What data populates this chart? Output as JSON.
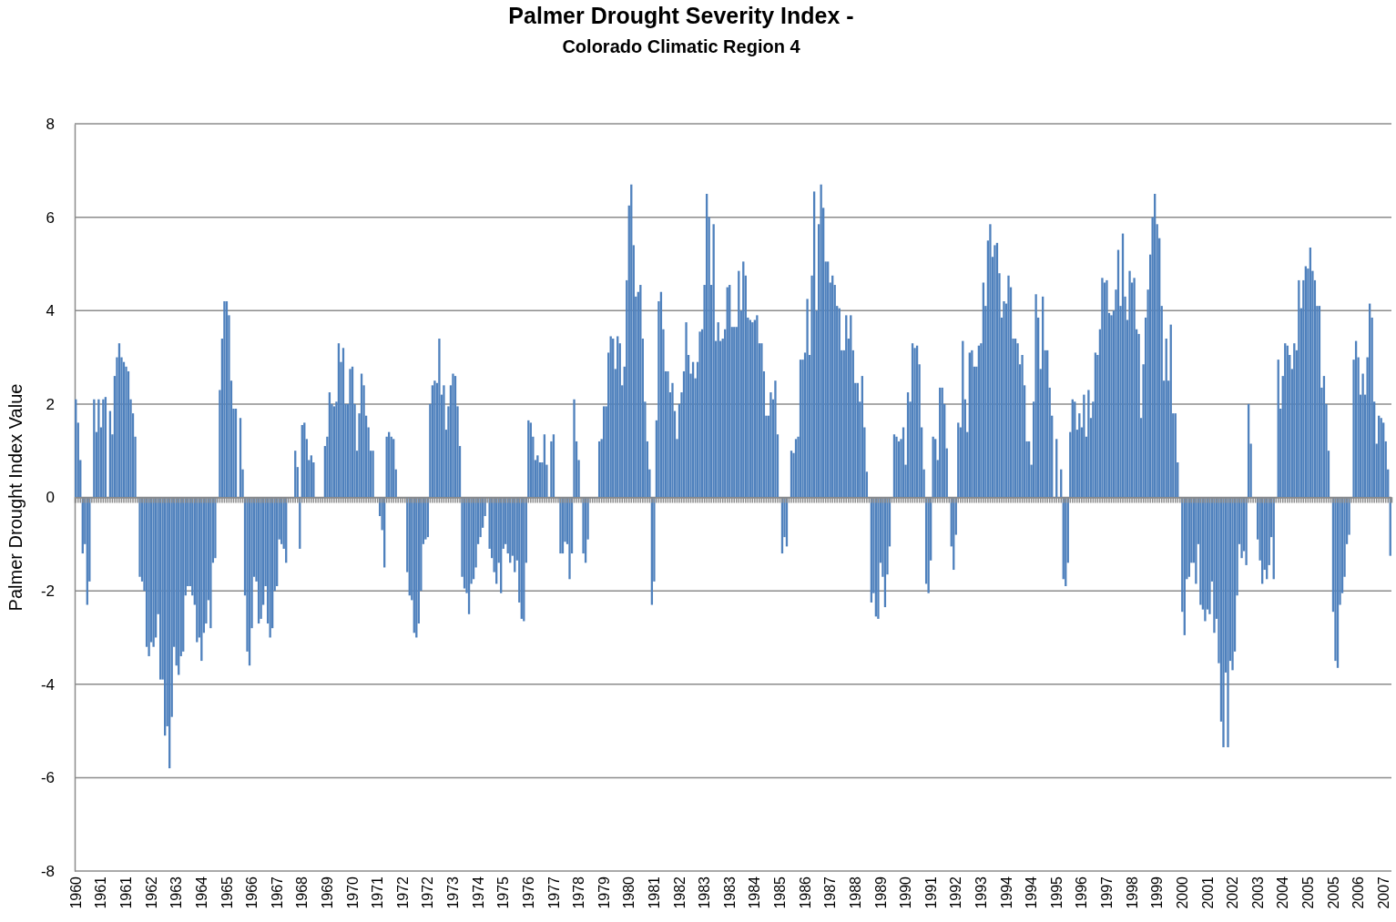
{
  "chart_data": {
    "type": "bar",
    "title": "Palmer Drought Severity Index -",
    "subtitle": "Colorado Climatic Region 4",
    "ylabel": "Palmer Drought Index Value",
    "categories": [
      "1960",
      null,
      null,
      null,
      null,
      null,
      null,
      null,
      null,
      null,
      null,
      "1961",
      null,
      null,
      null,
      null,
      null,
      null,
      null,
      null,
      null,
      null,
      "1961",
      null,
      null,
      null,
      null,
      null,
      null,
      null,
      null,
      null,
      null,
      "1962",
      null,
      null,
      null,
      null,
      null,
      null,
      null,
      null,
      null,
      null,
      "1963",
      null,
      null,
      null,
      null,
      null,
      null,
      null,
      null,
      null,
      null,
      "1964",
      null,
      null,
      null,
      null,
      null,
      null,
      null,
      null,
      null,
      null,
      "1965",
      null,
      null,
      null,
      null,
      null,
      null,
      null,
      null,
      null,
      null,
      "1966",
      null,
      null,
      null,
      null,
      null,
      null,
      null,
      null,
      null,
      null,
      "1967",
      null,
      null,
      null,
      null,
      null,
      null,
      null,
      null,
      null,
      null,
      "1968",
      null,
      null,
      null,
      null,
      null,
      null,
      null,
      null,
      null,
      null,
      "1969",
      null,
      null,
      null,
      null,
      null,
      null,
      null,
      null,
      null,
      null,
      "1970",
      null,
      null,
      null,
      null,
      null,
      null,
      null,
      null,
      null,
      null,
      "1971",
      null,
      null,
      null,
      null,
      null,
      null,
      null,
      null,
      null,
      null,
      "1972",
      null,
      null,
      null,
      null,
      null,
      null,
      null,
      null,
      null,
      null,
      "1972",
      null,
      null,
      null,
      null,
      null,
      null,
      null,
      null,
      null,
      null,
      "1973",
      null,
      null,
      null,
      null,
      null,
      null,
      null,
      null,
      null,
      null,
      "1974",
      null,
      null,
      null,
      null,
      null,
      null,
      null,
      null,
      null,
      null,
      "1975",
      null,
      null,
      null,
      null,
      null,
      null,
      null,
      null,
      null,
      null,
      "1976",
      null,
      null,
      null,
      null,
      null,
      null,
      null,
      null,
      null,
      null,
      "1977",
      null,
      null,
      null,
      null,
      null,
      null,
      null,
      null,
      null,
      null,
      "1978",
      null,
      null,
      null,
      null,
      null,
      null,
      null,
      null,
      null,
      null,
      "1979",
      null,
      null,
      null,
      null,
      null,
      null,
      null,
      null,
      null,
      null,
      "1980",
      null,
      null,
      null,
      null,
      null,
      null,
      null,
      null,
      null,
      null,
      "1981",
      null,
      null,
      null,
      null,
      null,
      null,
      null,
      null,
      null,
      null,
      "1982",
      null,
      null,
      null,
      null,
      null,
      null,
      null,
      null,
      null,
      null,
      "1983",
      null,
      null,
      null,
      null,
      null,
      null,
      null,
      null,
      null,
      null,
      "1983",
      null,
      null,
      null,
      null,
      null,
      null,
      null,
      null,
      null,
      null,
      "1984",
      null,
      null,
      null,
      null,
      null,
      null,
      null,
      null,
      null,
      null,
      "1985",
      null,
      null,
      null,
      null,
      null,
      null,
      null,
      null,
      null,
      null,
      "1986",
      null,
      null,
      null,
      null,
      null,
      null,
      null,
      null,
      null,
      null,
      "1987",
      null,
      null,
      null,
      null,
      null,
      null,
      null,
      null,
      null,
      null,
      "1988",
      null,
      null,
      null,
      null,
      null,
      null,
      null,
      null,
      null,
      null,
      "1989",
      null,
      null,
      null,
      null,
      null,
      null,
      null,
      null,
      null,
      null,
      "1990",
      null,
      null,
      null,
      null,
      null,
      null,
      null,
      null,
      null,
      null,
      "1991",
      null,
      null,
      null,
      null,
      null,
      null,
      null,
      null,
      null,
      null,
      "1992",
      null,
      null,
      null,
      null,
      null,
      null,
      null,
      null,
      null,
      null,
      "1993",
      null,
      null,
      null,
      null,
      null,
      null,
      null,
      null,
      null,
      null,
      "1994",
      null,
      null,
      null,
      null,
      null,
      null,
      null,
      null,
      null,
      null,
      "1994",
      null,
      null,
      null,
      null,
      null,
      null,
      null,
      null,
      null,
      null,
      "1995",
      null,
      null,
      null,
      null,
      null,
      null,
      null,
      null,
      null,
      null,
      "1996",
      null,
      null,
      null,
      null,
      null,
      null,
      null,
      null,
      null,
      null,
      "1997",
      null,
      null,
      null,
      null,
      null,
      null,
      null,
      null,
      null,
      null,
      "1998",
      null,
      null,
      null,
      null,
      null,
      null,
      null,
      null,
      null,
      null,
      "1999",
      null,
      null,
      null,
      null,
      null,
      null,
      null,
      null,
      null,
      null,
      "2000",
      null,
      null,
      null,
      null,
      null,
      null,
      null,
      null,
      null,
      null,
      "2001",
      null,
      null,
      null,
      null,
      null,
      null,
      null,
      null,
      null,
      null,
      "2002",
      null,
      null,
      null,
      null,
      null,
      null,
      null,
      null,
      null,
      null,
      "2003",
      null,
      null,
      null,
      null,
      null,
      null,
      null,
      null,
      null,
      null,
      "2004",
      null,
      null,
      null,
      null,
      null,
      null,
      null,
      null,
      null,
      null,
      "2005",
      null,
      null,
      null,
      null,
      null,
      null,
      null,
      null,
      null,
      null,
      "2005",
      null,
      null,
      null,
      null,
      null,
      null,
      null,
      null,
      null,
      null,
      "2006",
      null,
      null,
      null,
      null,
      null,
      null,
      null,
      null,
      null,
      null,
      "2007",
      null,
      null,
      null
    ],
    "values": [
      2.1,
      1.6,
      0.8,
      -1.2,
      -1.0,
      -2.3,
      -1.8,
      0,
      2.1,
      1.4,
      2.1,
      1.5,
      2.1,
      2.15,
      0,
      1.85,
      1.35,
      2.6,
      3.0,
      3.3,
      3.0,
      2.9,
      2.8,
      2.7,
      2.1,
      1.8,
      1.3,
      0,
      -1.7,
      -1.8,
      -2.0,
      -3.2,
      -3.4,
      -3.1,
      -3.2,
      -3.0,
      -2.5,
      -3.9,
      -3.9,
      -5.1,
      -4.9,
      -5.8,
      -4.7,
      -3.2,
      -3.6,
      -3.8,
      -3.4,
      -3.3,
      -2.1,
      -1.9,
      -1.9,
      -2.1,
      -2.3,
      -3.1,
      -3.0,
      -3.5,
      -2.9,
      -2.7,
      -2.2,
      -2.8,
      -1.4,
      -1.3,
      0,
      2.3,
      3.4,
      4.2,
      4.2,
      3.9,
      2.5,
      1.9,
      1.9,
      0,
      1.7,
      0.6,
      -2.1,
      -3.3,
      -3.6,
      -2.8,
      -1.7,
      -1.8,
      -2.7,
      -2.6,
      -2.3,
      -1.9,
      -2.7,
      -3.0,
      -2.8,
      -2.0,
      -1.9,
      -0.9,
      -1.0,
      -1.1,
      -1.4,
      0,
      0,
      0,
      1.0,
      0.65,
      -1.1,
      1.55,
      1.6,
      1.25,
      0.8,
      0.9,
      0.75,
      0,
      0,
      0,
      0,
      1.1,
      1.3,
      2.25,
      2.0,
      1.95,
      2.05,
      3.3,
      2.9,
      3.2,
      2.0,
      2.0,
      2.75,
      2.8,
      2.0,
      1.0,
      1.8,
      2.65,
      2.4,
      1.75,
      1.5,
      1.0,
      1.0,
      0,
      0,
      -0.4,
      -0.7,
      -1.5,
      1.3,
      1.4,
      1.3,
      1.25,
      0.6,
      0,
      0,
      0,
      0,
      -1.6,
      -2.1,
      -2.2,
      -2.9,
      -3.0,
      -2.7,
      -2.0,
      -1.0,
      -0.9,
      -0.85,
      2.0,
      2.4,
      2.5,
      2.45,
      3.4,
      2.2,
      2.4,
      1.45,
      1.95,
      2.4,
      2.65,
      2.6,
      1.95,
      1.1,
      -1.7,
      -1.95,
      -2.05,
      -2.5,
      -1.85,
      -1.75,
      -1.5,
      -1.0,
      -0.85,
      -0.65,
      -0.4,
      0,
      -1.1,
      -1.3,
      -1.6,
      -1.85,
      -1.4,
      -2.05,
      -1.1,
      -1.0,
      -1.2,
      -1.4,
      -1.25,
      -1.6,
      -1.35,
      -2.25,
      -2.6,
      -2.65,
      -1.4,
      1.65,
      1.6,
      1.3,
      0.8,
      0.9,
      0.75,
      0.75,
      1.35,
      0.7,
      0,
      1.2,
      1.35,
      0,
      0,
      -1.2,
      -1.2,
      -0.95,
      -1.0,
      -1.75,
      -1.2,
      2.1,
      1.2,
      0.8,
      0,
      -1.2,
      -1.4,
      -0.9,
      0,
      0,
      0,
      0,
      1.2,
      1.25,
      1.95,
      1.95,
      3.1,
      3.45,
      3.4,
      2.75,
      3.45,
      3.3,
      2.4,
      2.8,
      4.65,
      6.25,
      6.7,
      5.4,
      4.3,
      4.4,
      4.55,
      3.4,
      2.05,
      1.2,
      0.6,
      -2.3,
      -1.8,
      1.65,
      4.2,
      4.4,
      3.6,
      2.7,
      2.7,
      2.25,
      2.45,
      1.85,
      1.25,
      2.0,
      2.25,
      2.7,
      3.75,
      3.05,
      2.65,
      2.9,
      2.55,
      2.9,
      3.55,
      3.6,
      4.55,
      6.5,
      6.0,
      4.55,
      5.85,
      3.35,
      3.75,
      3.35,
      3.4,
      3.6,
      4.5,
      4.55,
      3.65,
      3.65,
      3.65,
      4.85,
      4.0,
      5.05,
      4.75,
      3.85,
      3.8,
      3.75,
      3.8,
      3.9,
      3.3,
      3.3,
      2.7,
      1.75,
      1.75,
      2.25,
      2.1,
      2.5,
      1.35,
      0,
      -1.2,
      -0.85,
      -1.05,
      0,
      1.0,
      0.95,
      1.25,
      1.3,
      2.95,
      2.95,
      3.1,
      4.25,
      3.05,
      4.75,
      6.55,
      4.0,
      5.85,
      6.7,
      6.2,
      5.05,
      5.05,
      4.6,
      4.75,
      4.55,
      4.1,
      4.05,
      3.15,
      3.15,
      3.9,
      3.4,
      3.9,
      3.15,
      2.45,
      2.45,
      2.05,
      2.6,
      1.5,
      0.55,
      0,
      -2.25,
      -2.05,
      -2.55,
      -2.6,
      -1.4,
      -1.7,
      -2.35,
      -1.65,
      -1.05,
      0,
      1.35,
      1.3,
      1.2,
      1.25,
      1.5,
      0.7,
      2.25,
      2.05,
      3.3,
      3.2,
      3.25,
      2.85,
      1.5,
      0.6,
      -1.85,
      -2.05,
      -1.35,
      1.3,
      1.25,
      0.8,
      2.35,
      2.35,
      2.0,
      1.05,
      0,
      -1.05,
      -1.55,
      -0.8,
      1.6,
      1.5,
      3.35,
      2.1,
      1.4,
      3.1,
      3.15,
      2.8,
      2.8,
      3.25,
      3.3,
      4.6,
      4.1,
      5.5,
      5.85,
      5.15,
      5.4,
      5.45,
      4.8,
      3.85,
      4.2,
      4.15,
      4.75,
      4.5,
      3.4,
      3.4,
      3.3,
      2.85,
      3.05,
      2.4,
      1.2,
      1.2,
      0.7,
      2.05,
      4.35,
      3.85,
      2.75,
      4.3,
      3.15,
      3.15,
      2.35,
      1.75,
      0,
      1.25,
      0,
      0.6,
      -1.75,
      -1.9,
      -1.4,
      1.4,
      2.1,
      2.05,
      1.45,
      1.8,
      1.5,
      2.2,
      1.3,
      2.3,
      1.7,
      2.05,
      3.1,
      3.05,
      3.6,
      4.7,
      4.6,
      4.65,
      3.95,
      3.9,
      4.0,
      4.45,
      5.3,
      4.1,
      5.65,
      4.3,
      3.8,
      4.85,
      4.6,
      4.7,
      3.6,
      3.5,
      1.7,
      2.85,
      3.85,
      4.45,
      5.2,
      6.0,
      6.5,
      5.85,
      5.55,
      4.1,
      2.5,
      3.4,
      2.5,
      3.7,
      1.8,
      1.8,
      0.75,
      0,
      -2.45,
      -2.95,
      -1.75,
      -1.7,
      -1.4,
      -1.4,
      -1.85,
      -1.0,
      -2.3,
      -2.4,
      -2.65,
      -2.4,
      -2.5,
      -1.8,
      -2.9,
      -2.6,
      -3.55,
      -4.8,
      -5.35,
      -3.75,
      -5.35,
      -3.5,
      -3.7,
      -3.3,
      -2.1,
      -1.0,
      -1.3,
      -1.15,
      -1.45,
      2.0,
      1.15,
      0,
      0,
      -0.9,
      -1.35,
      -1.85,
      -1.55,
      -1.75,
      -1.45,
      -0.85,
      -1.75,
      0,
      2.95,
      1.9,
      2.6,
      3.3,
      3.25,
      3.05,
      2.75,
      3.3,
      3.15,
      4.65,
      4.05,
      4.65,
      4.95,
      4.9,
      5.35,
      4.85,
      4.65,
      4.1,
      4.1,
      2.35,
      2.6,
      2.0,
      1.0,
      0,
      -2.45,
      -3.5,
      -3.65,
      -2.3,
      -2.05,
      -1.7,
      -1.0,
      -0.8,
      0,
      2.95,
      3.35,
      3.0,
      2.2,
      2.65,
      2.2,
      3.0,
      4.15,
      3.85,
      2.05,
      1.15,
      1.75,
      1.7,
      1.6,
      1.2,
      0.6,
      -1.25
    ],
    "color": "#4f81bd",
    "ylim": [
      -8,
      8
    ],
    "yticks": [
      -8,
      -6,
      -4,
      -2,
      0,
      2,
      4,
      6,
      8
    ],
    "grid": true
  }
}
